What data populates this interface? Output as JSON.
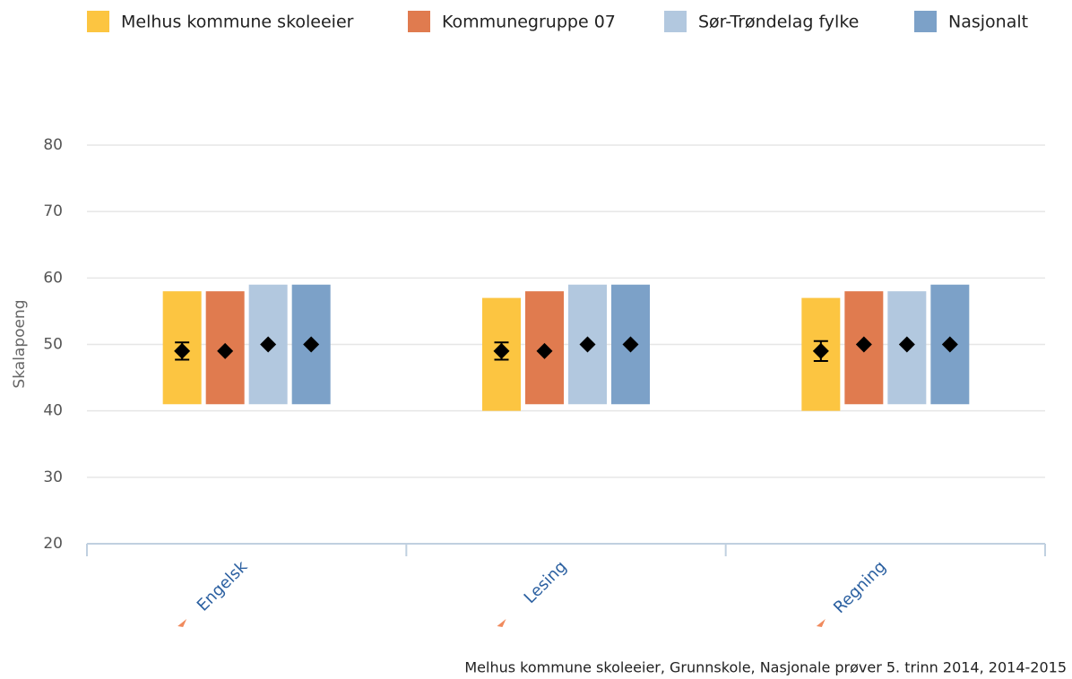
{
  "chart_data": {
    "type": "bar",
    "y_label": "Skalapoeng",
    "credit": "Melhus kommune skoleeier, Grunnskole, Nasjonale prøver 5. trinn 2014, 2014-2015",
    "categories": [
      "Engelsk",
      "Lesing",
      "Regning"
    ],
    "ylim": [
      20,
      80
    ],
    "yticks": [
      20,
      30,
      40,
      50,
      60,
      70,
      80
    ],
    "grid": true,
    "series": [
      {
        "name": "Melhus kommune skoleeier",
        "color": "#fcc541",
        "low": [
          41,
          40,
          40
        ],
        "high": [
          58,
          57,
          57
        ],
        "values": [
          49,
          49,
          49
        ],
        "errors": [
          1.3,
          1.3,
          1.5
        ]
      },
      {
        "name": "Kommunegruppe 07",
        "color": "#e07b4f",
        "low": [
          41,
          41,
          41
        ],
        "high": [
          58,
          58,
          58
        ],
        "values": [
          49,
          49,
          50
        ]
      },
      {
        "name": "Sør-Trøndelag fylke",
        "color": "#b2c8df",
        "low": [
          41,
          41,
          41
        ],
        "high": [
          59,
          59,
          58
        ],
        "values": [
          50,
          50,
          50
        ]
      },
      {
        "name": "Nasjonalt",
        "color": "#7ca1c8",
        "low": [
          41,
          41,
          41
        ],
        "high": [
          59,
          59,
          59
        ],
        "values": [
          50,
          50,
          50
        ]
      }
    ]
  }
}
